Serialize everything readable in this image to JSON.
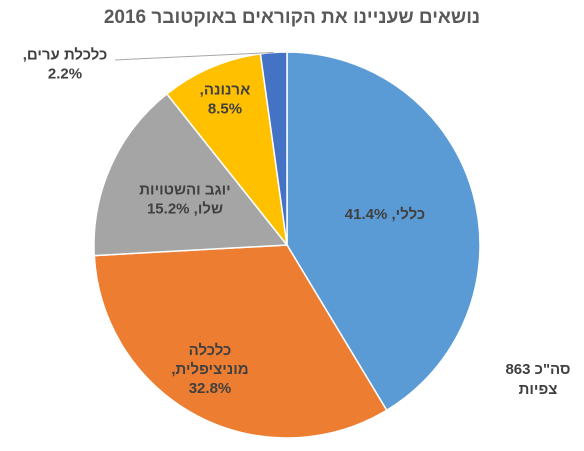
{
  "chart_data": {
    "type": "pie",
    "title": "נושאים שעניינו את הקוראים באוקטובר 2016",
    "values": [
      41.4,
      32.8,
      15.2,
      8.5,
      2.2
    ],
    "value_labels": [
      [
        "כללי, 41.4%"
      ],
      [
        "כלכלה",
        "מוניציפלית,",
        "32.8%"
      ],
      [
        "יוגב והשטויות",
        "שלו, 15.2%"
      ],
      [
        "ארנונה,",
        "8.5%"
      ],
      [
        "כלכלת ערים,",
        "2.2%"
      ]
    ],
    "colors": [
      "#5b9bd5",
      "#ed7d31",
      "#a5a5a5",
      "#ffc000",
      "#4472c4"
    ],
    "annotation": [
      "סה\"כ 863",
      "צפיות"
    ]
  }
}
